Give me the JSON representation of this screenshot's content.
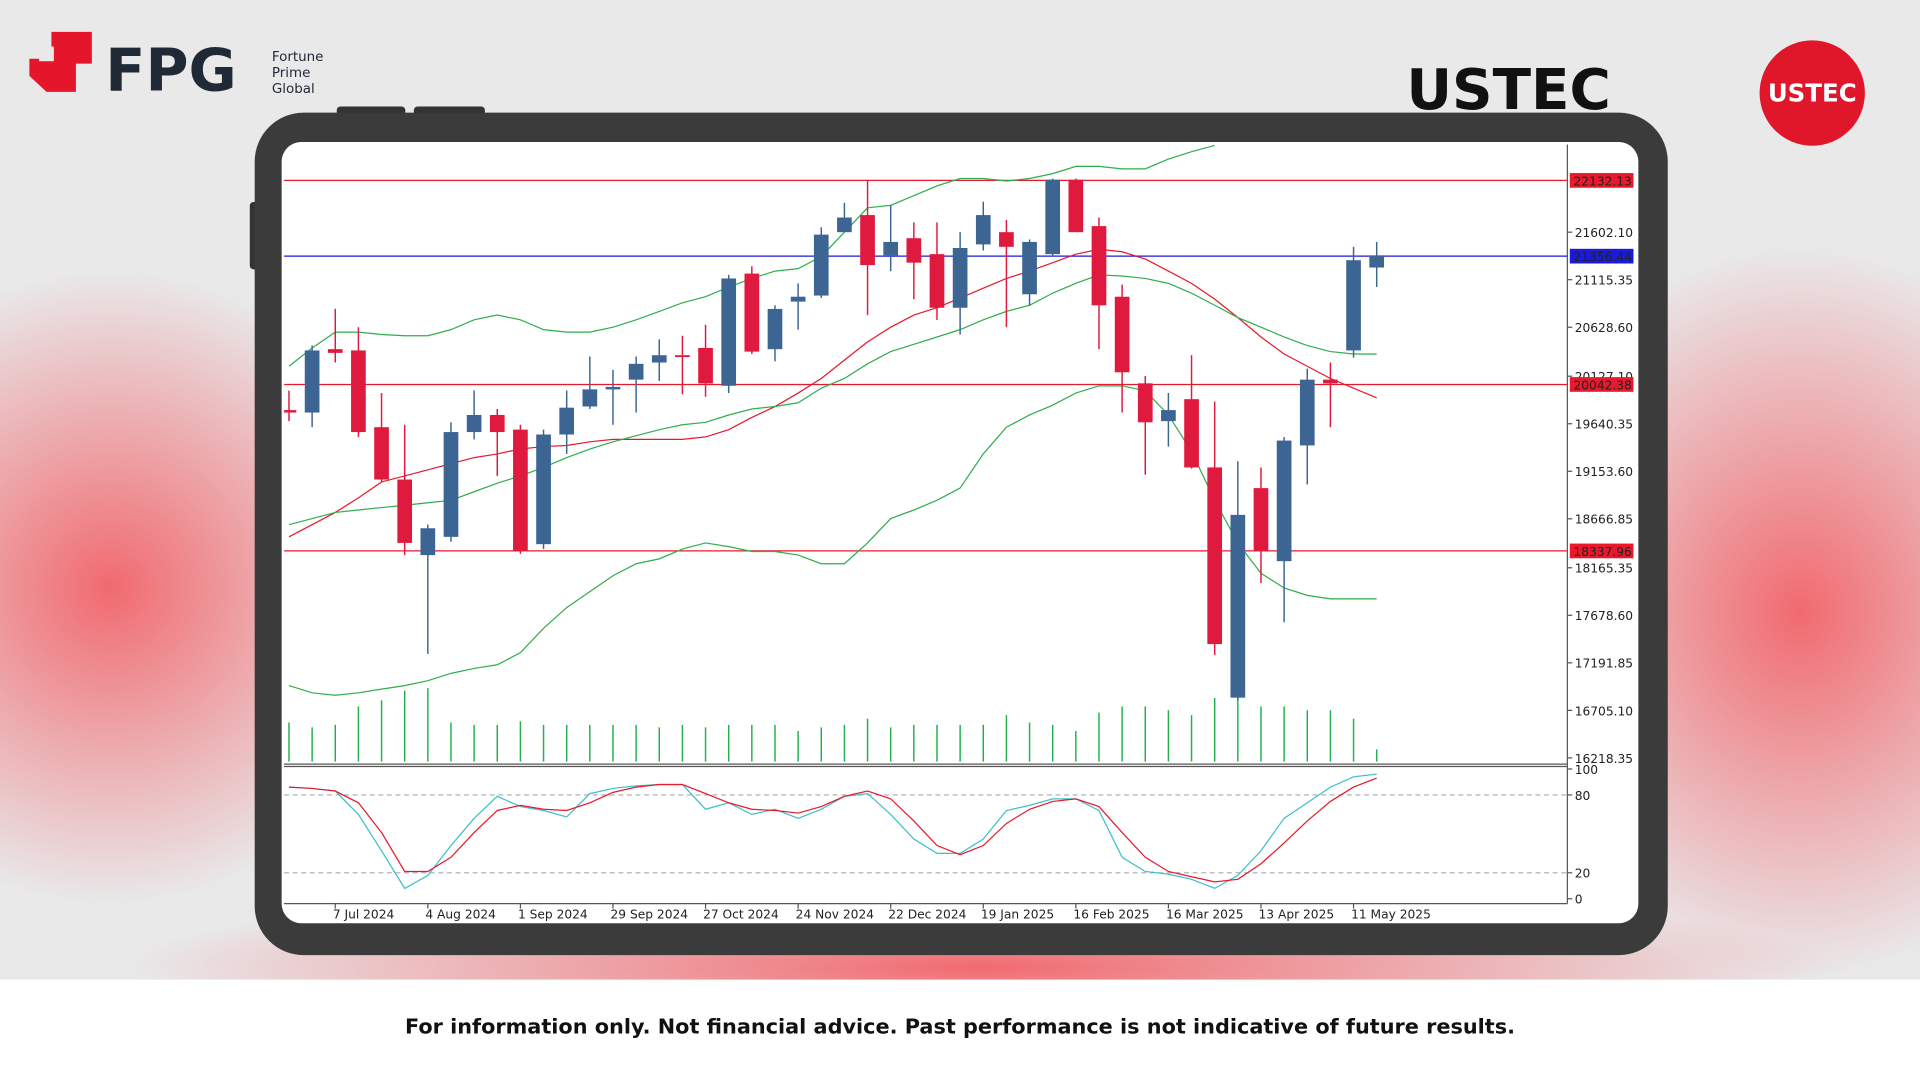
{
  "header": {
    "brand": "FPG",
    "brand_lines": [
      "Fortune",
      "Prime",
      "Global"
    ],
    "badge": "USTEC"
  },
  "chart_data": {
    "type": "candlestick",
    "title": "USTEC",
    "categories": [
      null,
      null,
      "7 Jul 2024",
      null,
      null,
      null,
      "4 Aug 2024",
      null,
      null,
      null,
      "1 Sep 2024",
      null,
      null,
      null,
      "29 Sep 2024",
      null,
      null,
      null,
      "27 Oct 2024",
      null,
      null,
      null,
      "24 Nov 2024",
      null,
      null,
      null,
      "22 Dec 2024",
      null,
      null,
      null,
      "19 Jan 2025",
      null,
      null,
      null,
      "16 Feb 2025",
      null,
      null,
      null,
      "16 Mar 2025",
      null,
      null,
      null,
      "13 Apr 2025",
      null,
      null,
      null,
      "11 May 2025",
      null
    ],
    "open": [
      19780,
      19755,
      20404,
      20391,
      19605,
      19069,
      18295,
      18482,
      19555,
      19730,
      19580,
      18407,
      19530,
      19817,
      19992,
      20092,
      20267,
      20342,
      20416,
      20029,
      21178,
      20404,
      20891,
      20953,
      21602,
      21777,
      21365,
      21540,
      21377,
      20828,
      21477,
      21602,
      20966,
      21377,
      22139,
      21664,
      20941,
      20054,
      19667,
      19892,
      19193,
      16835,
      18981,
      18233,
      19418,
      20092,
      20391,
      21240
    ],
    "high": [
      19980,
      20441,
      20816,
      20629,
      19955,
      19630,
      18607,
      19655,
      19980,
      19792,
      19630,
      19580,
      19980,
      20329,
      20192,
      20329,
      20504,
      20541,
      20654,
      21165,
      21253,
      20853,
      21078,
      21652,
      21902,
      22126,
      21877,
      21702,
      21702,
      21602,
      21914,
      21727,
      21527,
      22151,
      22151,
      21752,
      21065,
      20129,
      19955,
      20342,
      19867,
      19256,
      19193,
      19505,
      20204,
      20267,
      21452,
      21502
    ],
    "low": [
      19668,
      19605,
      20267,
      19505,
      19044,
      18295,
      17284,
      18432,
      19480,
      19106,
      18307,
      18357,
      19331,
      19792,
      19630,
      19755,
      20079,
      19942,
      19917,
      19955,
      20354,
      20279,
      20604,
      20928,
      21602,
      20753,
      21203,
      20916,
      20703,
      20554,
      21415,
      20629,
      20853,
      21352,
      21602,
      20404,
      19755,
      19119,
      19406,
      19181,
      17271,
      16810,
      18008,
      17608,
      19019,
      19605,
      20317,
      21041
    ],
    "close": [
      19755,
      20391,
      20366,
      19555,
      19069,
      18420,
      18570,
      19555,
      19730,
      19555,
      18332,
      19530,
      19805,
      19992,
      20017,
      20254,
      20342,
      20329,
      20054,
      21128,
      20379,
      20816,
      20941,
      21577,
      21752,
      21265,
      21502,
      21290,
      20828,
      21440,
      21777,
      21452,
      21502,
      22139,
      21602,
      20853,
      20167,
      19655,
      19780,
      19193,
      17384,
      18707,
      18332,
      19468,
      20092,
      20054,
      21315,
      21365
    ],
    "up_color": "#3d6594",
    "down_color": "#e0193e",
    "ylim": [
      16180,
      22500
    ],
    "yticks": [
      16218.35,
      {
        "value": 16705.1,
        "label": "16705.10"
      },
      17191.85,
      {
        "value": 17678.6,
        "label": "17678.60"
      },
      18165.35,
      18666.85,
      {
        "value": 19153.6,
        "label": "19153.60"
      },
      19640.35,
      {
        "value": 20127.1,
        "label": "20127.10"
      },
      {
        "value": 20628.6,
        "label": "20628.60"
      },
      21115.35,
      {
        "value": 21602.1,
        "label": "21602.10"
      }
    ],
    "levels": [
      {
        "value": 22132.13,
        "color": "#e8192c"
      },
      {
        "value": 21356.44,
        "color": "#1a1adb"
      },
      {
        "value": 20042.38,
        "color": "#e8192c"
      },
      {
        "value": 18337.96,
        "color": "#e8192c"
      }
    ],
    "lines": [
      {
        "color": "#e8192c",
        "values": [
          18482,
          18607,
          18732,
          18881,
          19044,
          19106,
          19168,
          19231,
          19293,
          19331,
          19381,
          19406,
          19418,
          19455,
          19480,
          19480,
          19480,
          19480,
          19505,
          19580,
          19705,
          19817,
          19955,
          20104,
          20292,
          20479,
          20629,
          20753,
          20828,
          20928,
          21028,
          21128,
          21203,
          21290,
          21377,
          21427,
          21402,
          21327,
          21203,
          21078,
          20916,
          20728,
          20529,
          20354,
          20229,
          20104,
          20004,
          19905
        ]
      },
      {
        "color": "#2fae4e",
        "values": [
          20229,
          20416,
          20579,
          20579,
          20554,
          20541,
          20541,
          20604,
          20704,
          20753,
          20704,
          20604,
          20579,
          20579,
          20629,
          20704,
          20791,
          20878,
          20941,
          21040,
          21128,
          21203,
          21228,
          21352,
          21602,
          21852,
          21877,
          21976,
          22076,
          22151,
          22151,
          22126,
          22151,
          22201,
          22276,
          22276,
          22251,
          22251,
          22351,
          22426,
          22490,
          null,
          null,
          null,
          null,
          null,
          null,
          null
        ]
      },
      {
        "color": "#2fae4e",
        "values": [
          18607,
          18669,
          18732,
          18757,
          18782,
          18806,
          18831,
          18856,
          18944,
          19031,
          19106,
          19193,
          19293,
          19381,
          19455,
          19518,
          19580,
          19630,
          19655,
          19730,
          19792,
          19817,
          19855,
          20004,
          20104,
          20254,
          20379,
          20454,
          20529,
          20604,
          20704,
          20791,
          20853,
          20978,
          21078,
          21165,
          21153,
          21128,
          21078,
          20978,
          20853,
          20728,
          20629,
          20529,
          20441,
          20379,
          20354,
          20354
        ]
      },
      {
        "color": "#2fae4e",
        "values": [
          16959,
          16885,
          16860,
          16885,
          16922,
          16959,
          17009,
          17084,
          17134,
          17172,
          17296,
          17546,
          17758,
          17920,
          18083,
          18207,
          18257,
          18357,
          18420,
          18382,
          18332,
          18332,
          18295,
          18207,
          18207,
          18420,
          18669,
          18757,
          18856,
          18981,
          19331,
          19605,
          19730,
          19830,
          19955,
          20029,
          20029,
          19980,
          19730,
          19356,
          18856,
          18420,
          18108,
          17958,
          17883,
          17846,
          17846,
          17846
        ]
      }
    ],
    "volume": {
      "color": "#22b14c",
      "values": [
        32,
        28,
        30,
        45,
        50,
        58,
        60,
        32,
        30,
        30,
        33,
        30,
        30,
        30,
        30,
        30,
        28,
        30,
        28,
        30,
        30,
        30,
        25,
        28,
        30,
        35,
        28,
        30,
        30,
        30,
        30,
        38,
        32,
        30,
        25,
        40,
        45,
        45,
        42,
        38,
        52,
        52,
        45,
        45,
        42,
        42,
        35,
        10
      ]
    },
    "stochastic": {
      "ylim": [
        0,
        100
      ],
      "yticks": [
        0,
        20,
        80,
        100
      ],
      "levels": [
        20,
        80
      ],
      "series": [
        {
          "color": "#3fbfc9",
          "values": [
            86,
            85,
            83,
            65,
            37,
            8,
            18,
            41,
            62,
            79,
            71,
            68,
            63,
            81,
            85,
            87,
            88,
            88,
            69,
            74,
            65,
            69,
            62,
            69,
            79,
            81,
            65,
            46,
            35,
            35,
            46,
            68,
            72,
            77,
            77,
            68,
            32,
            21,
            19,
            15,
            8,
            18,
            37,
            62,
            74,
            86,
            94,
            96
          ]
        },
        {
          "color": "#e8192c",
          "values": [
            86,
            85,
            83,
            74,
            51,
            21,
            21,
            32,
            51,
            68,
            72,
            69,
            68,
            74,
            82,
            86,
            88,
            88,
            81,
            74,
            69,
            68,
            66,
            71,
            79,
            83,
            77,
            60,
            41,
            34,
            41,
            58,
            69,
            75,
            77,
            71,
            51,
            32,
            21,
            17,
            13,
            15,
            27,
            43,
            60,
            75,
            86,
            93
          ]
        }
      ]
    }
  },
  "footer": {
    "disclaimer": "For information only. Not financial advice. Past performance is not indicative of future results."
  }
}
